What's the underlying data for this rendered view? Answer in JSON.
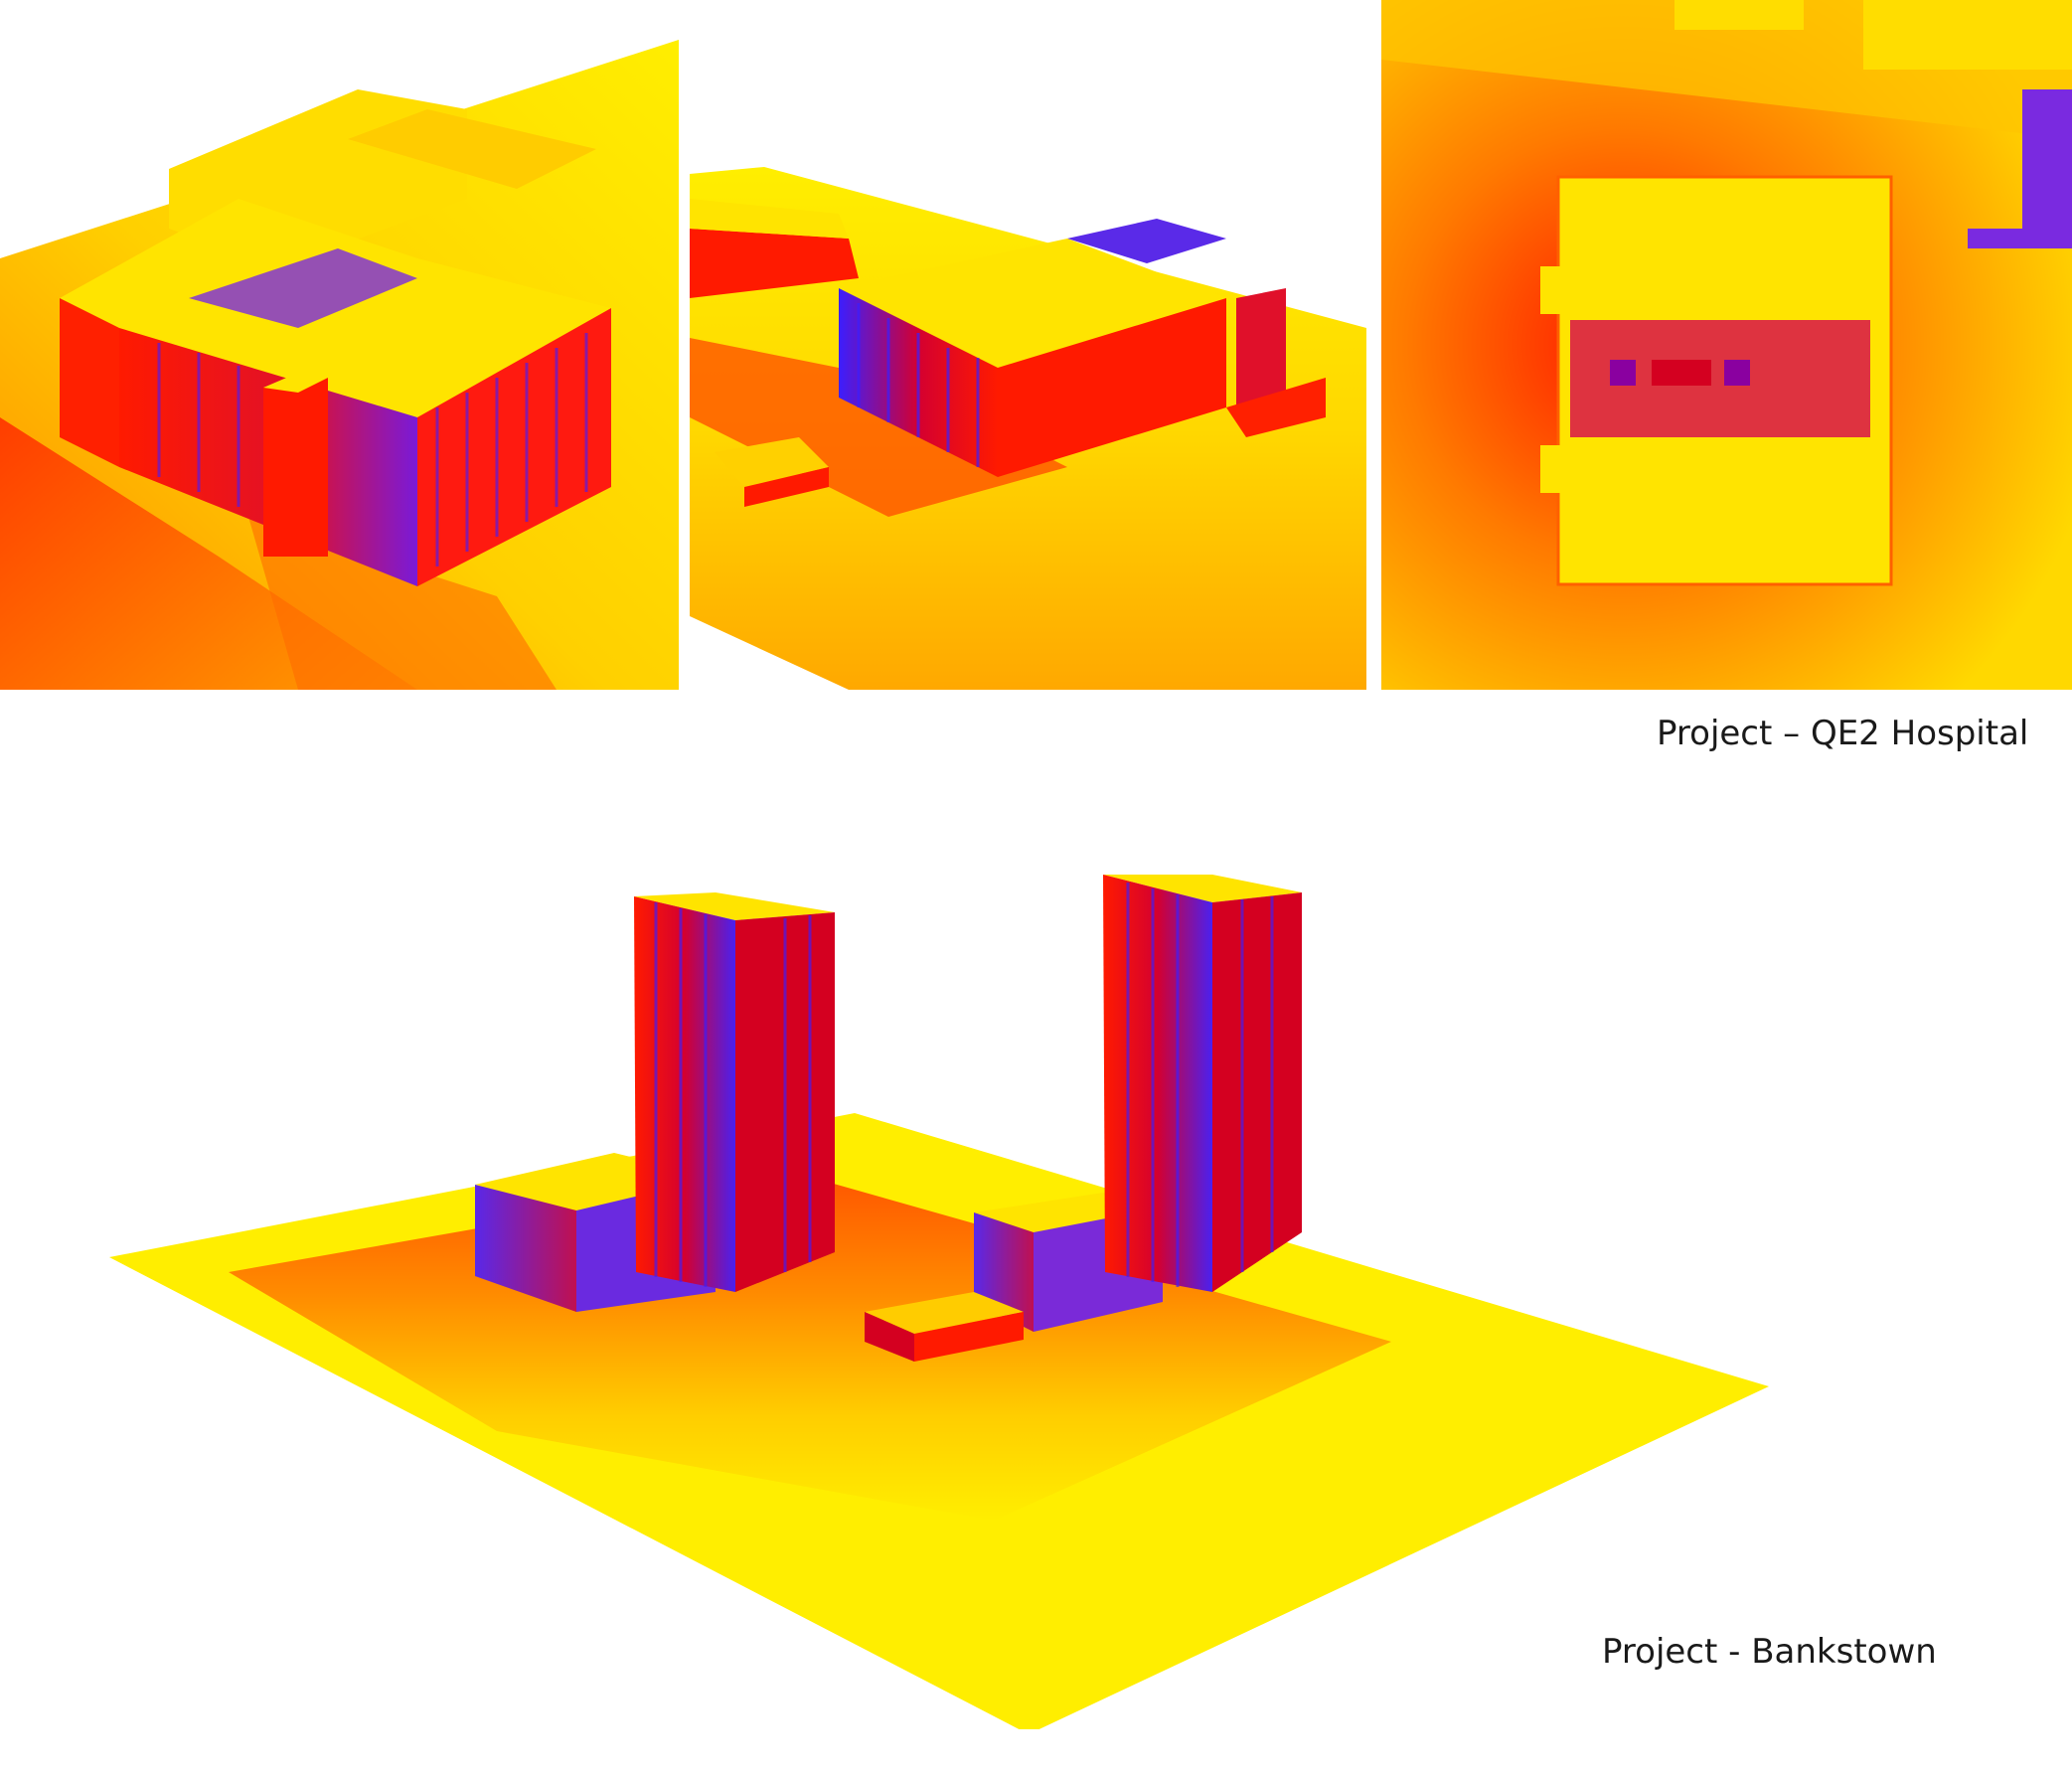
{
  "captions": {
    "qe2": "Project – QE2 Hospital",
    "bankstown": "Project - Bankstown"
  },
  "colors": {
    "high": "#ffee00",
    "mid": "#ff9a00",
    "low": "#ff1a00",
    "shade": "#d40020",
    "deep": "#3b1eff"
  }
}
